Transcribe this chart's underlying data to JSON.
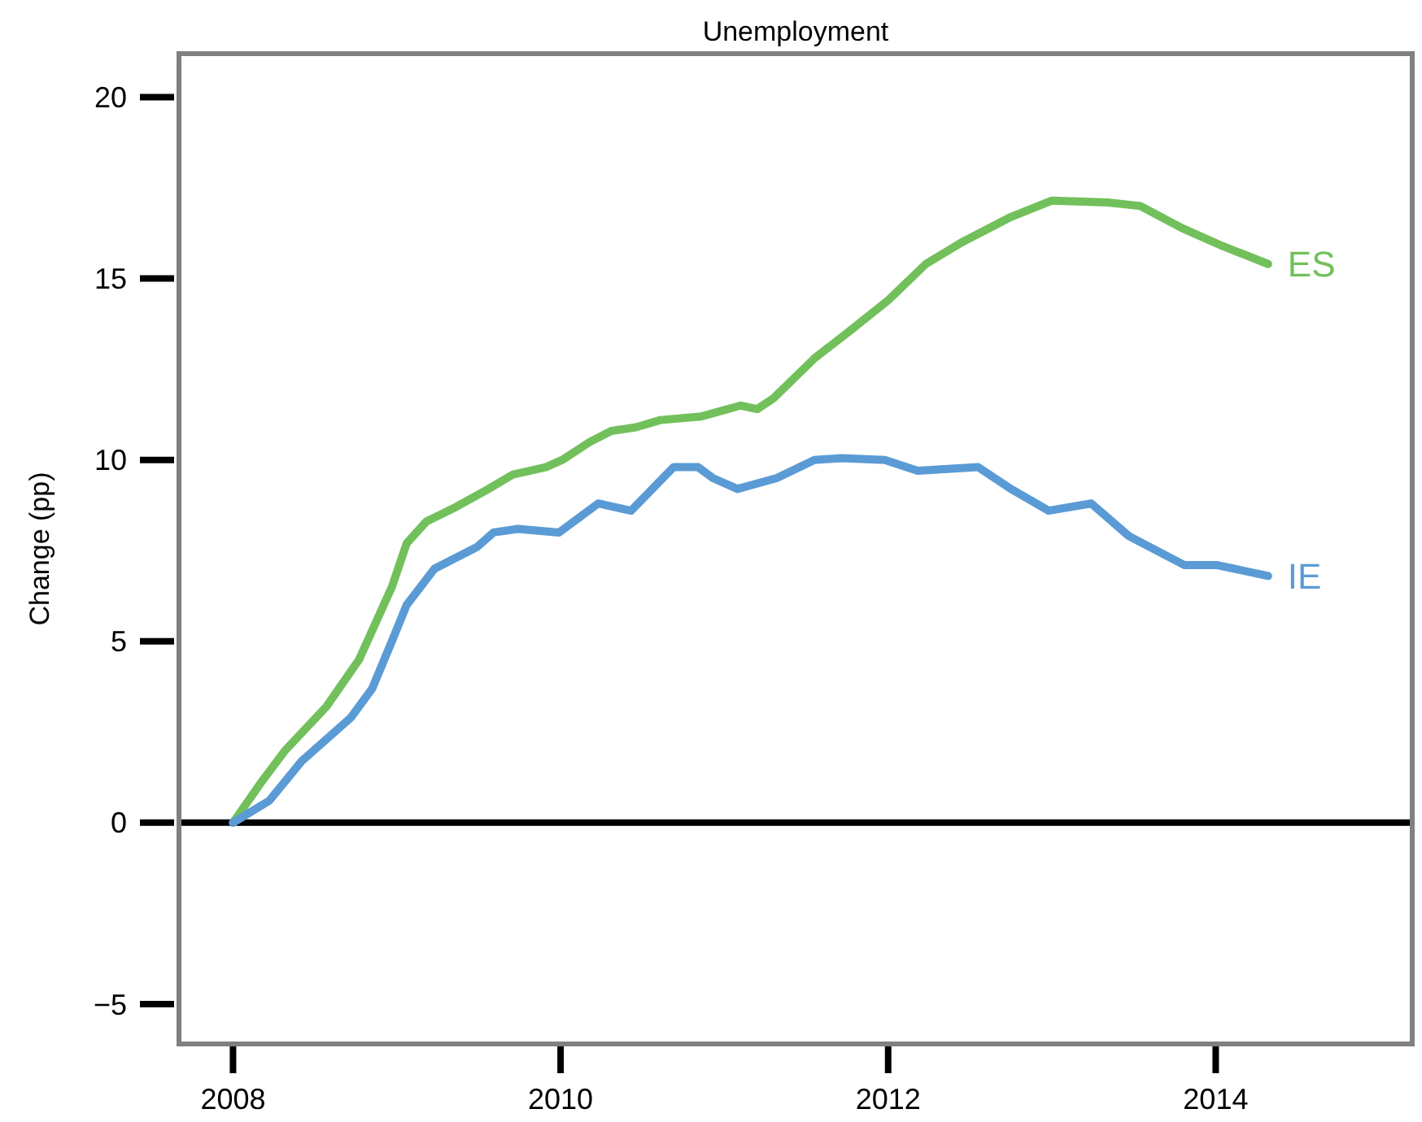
{
  "chart_data": {
    "type": "line",
    "title": "Unemployment",
    "ylabel": "Change (pp)",
    "xlim": [
      2007.67,
      2015.2
    ],
    "xticks": [
      2008,
      2010,
      2012,
      2014
    ],
    "ylim": [
      -6.1,
      21.2
    ],
    "yticks": [
      {
        "value": -5,
        "label": "−5"
      },
      0,
      5,
      10,
      15,
      20
    ],
    "grid": false,
    "marker": "none",
    "line_style": "solid",
    "ref_lines": [
      {
        "axis": "y",
        "value": 0,
        "label": null,
        "color": "#000000"
      }
    ],
    "series": [
      {
        "name": "ES",
        "color": "#72c05b",
        "x": [
          2008.0,
          2008.17,
          2008.32,
          2008.57,
          2008.77,
          2008.97,
          2009.06,
          2009.18,
          2009.36,
          2009.56,
          2009.71,
          2009.91,
          2010.01,
          2010.18,
          2010.31,
          2010.46,
          2010.61,
          2010.86,
          2011.1,
          2011.2,
          2011.3,
          2011.55,
          2011.75,
          2012.0,
          2012.23,
          2012.45,
          2012.75,
          2013.0,
          2013.34,
          2013.54,
          2013.79,
          2014.04,
          2014.32
        ],
        "values": [
          0,
          1.1,
          2.0,
          3.2,
          4.5,
          6.5,
          7.7,
          8.3,
          8.7,
          9.2,
          9.6,
          9.8,
          10.0,
          10.5,
          10.8,
          10.9,
          11.1,
          11.2,
          11.5,
          11.4,
          11.7,
          12.8,
          13.5,
          14.4,
          15.4,
          16.0,
          16.7,
          17.15,
          17.1,
          17.0,
          16.4,
          15.9,
          15.4
        ]
      },
      {
        "name": "IE",
        "color": "#5b9bd5",
        "x": [
          2008.0,
          2008.22,
          2008.42,
          2008.57,
          2008.72,
          2008.85,
          2008.97,
          2009.06,
          2009.23,
          2009.49,
          2009.59,
          2009.74,
          2009.99,
          2010.23,
          2010.43,
          2010.69,
          2010.84,
          2010.93,
          2011.08,
          2011.32,
          2011.55,
          2011.72,
          2011.98,
          2012.18,
          2012.55,
          2012.75,
          2012.98,
          2013.24,
          2013.47,
          2013.81,
          2014.01,
          2014.32
        ],
        "values": [
          0,
          0.6,
          1.7,
          2.3,
          2.9,
          3.7,
          5.0,
          6.0,
          7.0,
          7.6,
          8.0,
          8.1,
          8.0,
          8.8,
          8.6,
          9.8,
          9.8,
          9.5,
          9.2,
          9.5,
          10.0,
          10.05,
          10.0,
          9.7,
          9.8,
          9.2,
          8.6,
          8.8,
          7.9,
          7.1,
          7.1,
          6.8
        ]
      }
    ]
  }
}
